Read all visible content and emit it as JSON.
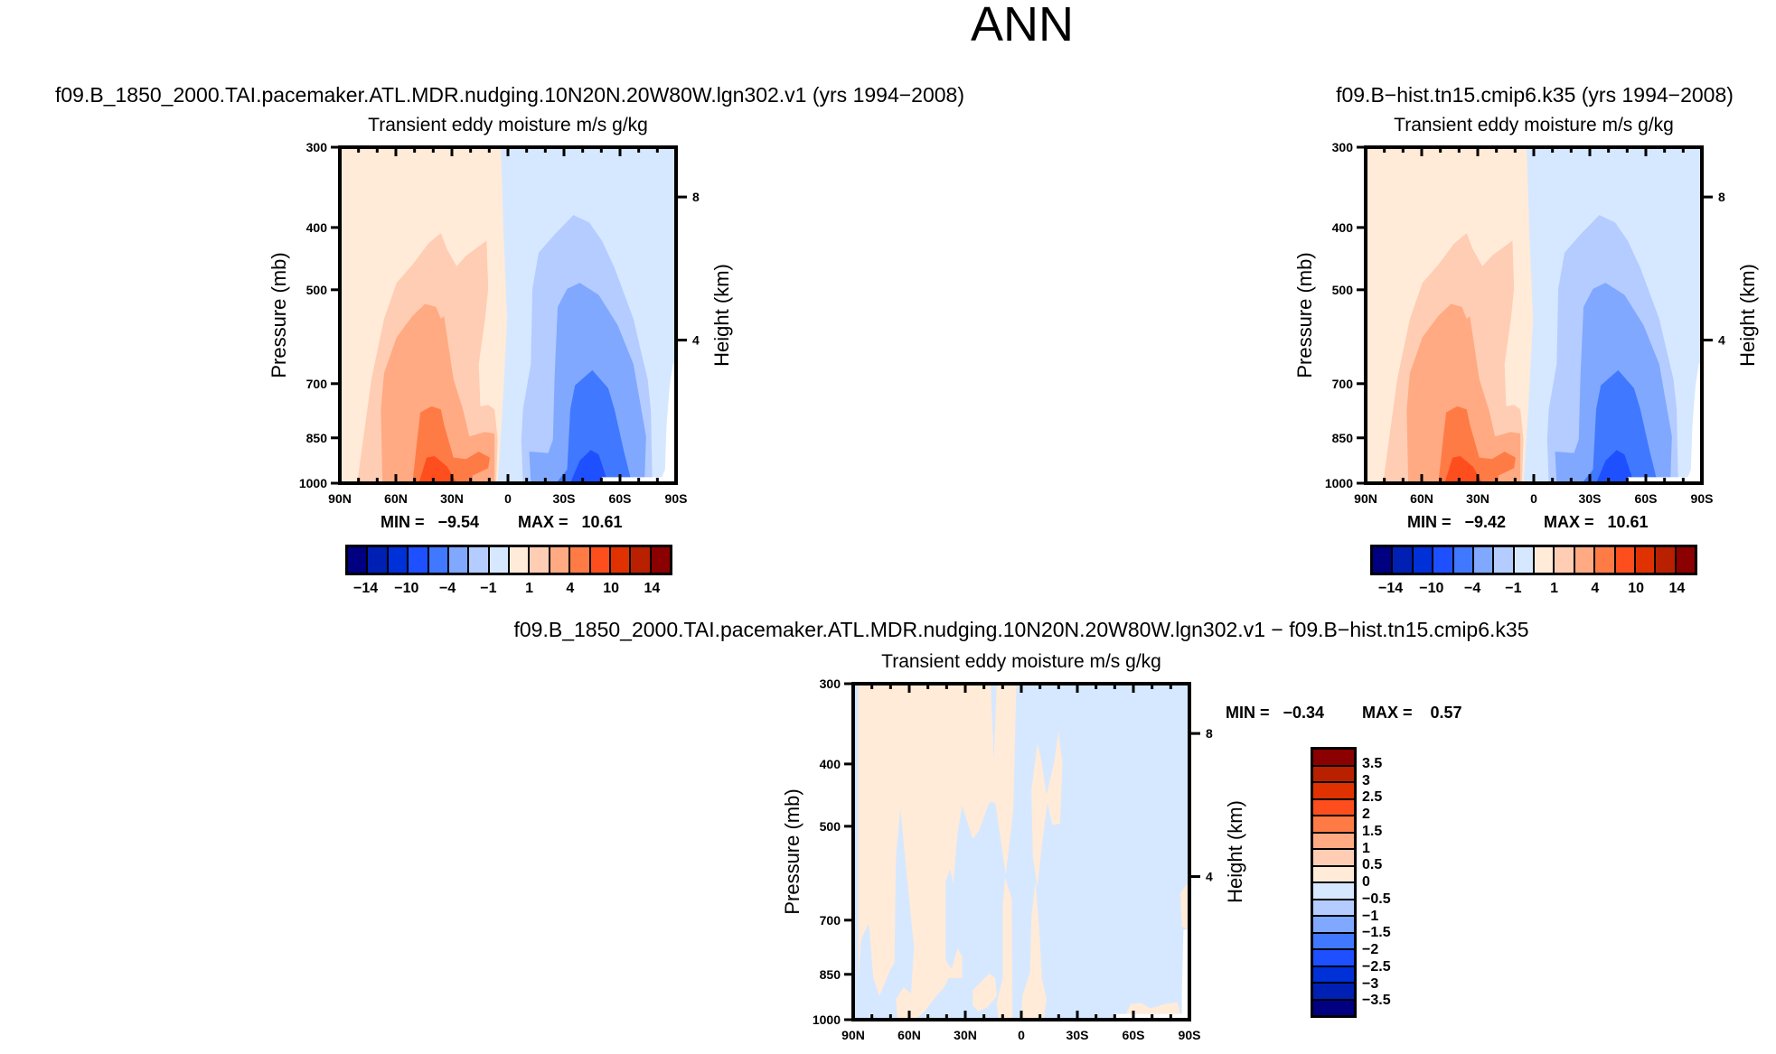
{
  "chart_data": {
    "type": "heatmap",
    "title": "ANN",
    "panels": [
      {
        "title": "f09.B_1850_2000.TAI.pacemaker.ATL.MDR.nudging.10N20N.20W80W.lgn302.v1 (yrs 1994−2008)",
        "subtitle": "Transient eddy moisture m/s g/kg",
        "ylabel": "Pressure (mb)",
        "ylabel_right": "Height (km)",
        "min_text": "MIN =   −9.54",
        "max_text": "MAX =   10.61",
        "min": -9.54,
        "max": 10.61
      },
      {
        "title": "f09.B−hist.tn15.cmip6.k35 (yrs 1994−2008)",
        "subtitle": "Transient eddy moisture m/s g/kg",
        "ylabel": "Pressure (mb)",
        "ylabel_right": "Height (km)",
        "min_text": "MIN =   −9.42",
        "max_text": "MAX =   10.61",
        "min": -9.42,
        "max": 10.61
      },
      {
        "title": "f09.B_1850_2000.TAI.pacemaker.ATL.MDR.nudging.10N20N.20W80W.lgn302.v1  −  f09.B−hist.tn15.cmip6.k35",
        "subtitle": "Transient eddy moisture m/s g/kg",
        "ylabel": "Pressure (mb)",
        "ylabel_right": "Height (km)",
        "min_text": "MIN =   −0.34",
        "max_text": "MAX =    0.57",
        "min": -0.34,
        "max": 0.57
      }
    ],
    "axes": {
      "pressure_ticks": [
        "300",
        "400",
        "500",
        "700",
        "850",
        "1000"
      ],
      "pressure_range": [
        300,
        1000
      ],
      "lat_ticks": [
        "90N",
        "60N",
        "30N",
        "0",
        "30S",
        "60S",
        "90S"
      ],
      "height_ticks": [
        "8",
        "4"
      ],
      "height_values_km": [
        8,
        4
      ]
    },
    "colorbar_main": {
      "colors": [
        "#000080",
        "#0020b4",
        "#0030d8",
        "#1e50ff",
        "#4078ff",
        "#80a8ff",
        "#b4ccff",
        "#d6e8ff",
        "#ffebd8",
        "#ffcdb4",
        "#ffaa82",
        "#ff7b46",
        "#ff4e1e",
        "#e03200",
        "#b82000",
        "#8b0000"
      ],
      "labels": [
        "−14",
        "−10",
        "−4",
        "−1",
        "1",
        "4",
        "10",
        "14"
      ]
    },
    "colorbar_diff": {
      "colors": [
        "#8b0000",
        "#b82000",
        "#e03200",
        "#ff4e1e",
        "#ff7b46",
        "#ffaa82",
        "#ffcdb4",
        "#ffebd8",
        "#d6e8ff",
        "#b4ccff",
        "#80a8ff",
        "#4078ff",
        "#1e50ff",
        "#0030d8",
        "#0020b4",
        "#000080"
      ],
      "labels": [
        "3.5",
        "3",
        "2.5",
        "2",
        "1.5",
        "1",
        "0.5",
        "0",
        "−0.5",
        "−1",
        "−1.5",
        "−2",
        "−2.5",
        "−3",
        "−3.5"
      ]
    }
  }
}
